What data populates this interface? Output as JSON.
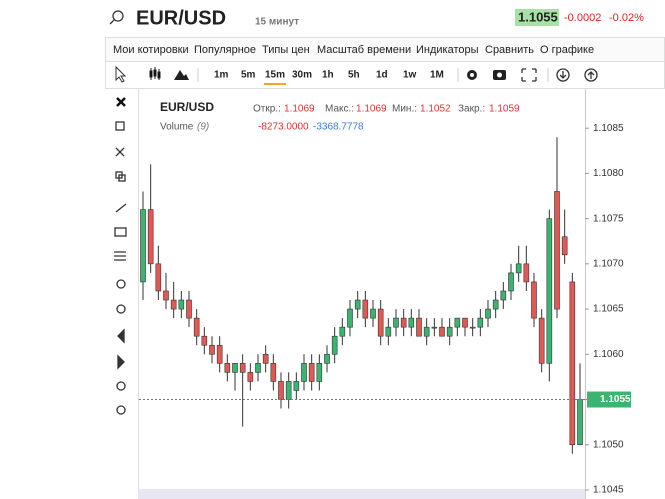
{
  "header": {
    "symbol": "EUR/USD",
    "interval": "15 минут",
    "price": "1.1055",
    "change": "-0.0002",
    "change_pct": "-0.02%"
  },
  "menu": [
    "Мои котировки",
    "Популярное",
    "Типы цен",
    "Масштаб времени",
    "Индикаторы",
    "Сравнить",
    "О графике"
  ],
  "timeframes": [
    "1m",
    "5m",
    "15m",
    "30m",
    "1h",
    "5h",
    "1d",
    "1w",
    "1M"
  ],
  "legend": {
    "symbol": "EUR/USD",
    "open_label": "Откр.:",
    "open": "1.1069",
    "high_label": "Макс.:",
    "high": "1.1069",
    "low_label": "Мин.:",
    "low": "1.1052",
    "close_label": "Закр.:",
    "close": "1.1059",
    "volume_label": "Volume",
    "volume_period": "(9)",
    "volume_1": "-8273.0000",
    "volume_2": "-3368.7778"
  },
  "chart_data": {
    "type": "candlestick",
    "ylim": [
      1.1044,
      1.1089
    ],
    "yticks": [
      1.1045,
      {
        "value": 1.105,
        "label": "1.1050"
      },
      1.1055,
      {
        "value": 1.106,
        "label": "1.1060"
      },
      1.1065,
      {
        "value": 1.107,
        "label": "1.1070"
      },
      1.1075,
      {
        "value": 1.108,
        "label": "1.1080"
      },
      1.1085
    ],
    "last_price": 1.1055,
    "up_color": "#3cb371",
    "down_color": "#e05a55",
    "open": [
      1.1068,
      1.1076,
      1.107,
      1.1067,
      1.1066,
      1.1065,
      1.1066,
      1.1064,
      1.1062,
      1.1061,
      1.1061,
      1.1059,
      1.1058,
      1.1059,
      1.1058,
      1.1058,
      1.106,
      1.1059,
      1.1057,
      1.1055,
      1.1056,
      1.1057,
      1.1059,
      1.1057,
      1.1059,
      1.106,
      1.1062,
      1.1063,
      1.1065,
      1.1066,
      1.1064,
      1.1065,
      1.1062,
      1.1063,
      1.1064,
      1.1063,
      1.1064,
      1.1062,
      1.1063,
      1.1063,
      1.1062,
      1.1063,
      1.1064,
      1.1063,
      1.1063,
      1.1064,
      1.1065,
      1.1066,
      1.1067,
      1.1069,
      1.107,
      1.1068,
      1.1064,
      1.1059,
      1.1078,
      1.1073,
      1.1068,
      1.105
    ],
    "high": [
      1.1078,
      1.1081,
      1.1072,
      1.1069,
      1.1068,
      1.1067,
      1.1067,
      1.1065,
      1.1063,
      1.1062,
      1.1062,
      1.106,
      1.1059,
      1.106,
      1.1059,
      1.106,
      1.1061,
      1.106,
      1.1058,
      1.1058,
      1.1058,
      1.106,
      1.106,
      1.106,
      1.1061,
      1.1063,
      1.1064,
      1.1066,
      1.1067,
      1.1067,
      1.1066,
      1.1066,
      1.1064,
      1.1065,
      1.1065,
      1.1065,
      1.1065,
      1.1064,
      1.1064,
      1.1064,
      1.1064,
      1.1064,
      1.1064,
      1.1064,
      1.1065,
      1.1066,
      1.1067,
      1.1068,
      1.107,
      1.1072,
      1.1072,
      1.1069,
      1.1065,
      1.1076,
      1.1084,
      1.1076,
      1.1069,
      1.1059
    ],
    "low": [
      1.1066,
      1.1069,
      1.1066,
      1.1065,
      1.1064,
      1.1064,
      1.1063,
      1.1061,
      1.106,
      1.1059,
      1.1058,
      1.1057,
      1.1056,
      1.1052,
      1.1056,
      1.1057,
      1.1058,
      1.1056,
      1.1054,
      1.1054,
      1.1055,
      1.1056,
      1.1056,
      1.1056,
      1.1058,
      1.1059,
      1.1061,
      1.1062,
      1.1064,
      1.1063,
      1.1063,
      1.1061,
      1.1061,
      1.1062,
      1.1062,
      1.1062,
      1.1062,
      1.1061,
      1.1062,
      1.1062,
      1.1061,
      1.1062,
      1.1062,
      1.1062,
      1.1062,
      1.1063,
      1.1064,
      1.1065,
      1.1066,
      1.1068,
      1.1067,
      1.1063,
      1.1058,
      1.1057,
      1.1064,
      1.107,
      1.1049,
      1.105
    ],
    "close": [
      1.1076,
      1.107,
      1.1067,
      1.1066,
      1.1065,
      1.1066,
      1.1064,
      1.1062,
      1.1061,
      1.106,
      1.1059,
      1.1058,
      1.1059,
      1.1058,
      1.1057,
      1.1059,
      1.1059,
      1.1057,
      1.1055,
      1.1057,
      1.1057,
      1.1059,
      1.1057,
      1.1059,
      1.106,
      1.1062,
      1.1063,
      1.1065,
      1.1066,
      1.1064,
      1.1065,
      1.1062,
      1.1063,
      1.1064,
      1.1063,
      1.1064,
      1.1062,
      1.1063,
      1.1063,
      1.1062,
      1.1063,
      1.1064,
      1.1063,
      1.1063,
      1.1064,
      1.1065,
      1.1066,
      1.1067,
      1.1069,
      1.107,
      1.1068,
      1.1064,
      1.1059,
      1.1075,
      1.1065,
      1.1071,
      1.105,
      1.1055
    ]
  }
}
